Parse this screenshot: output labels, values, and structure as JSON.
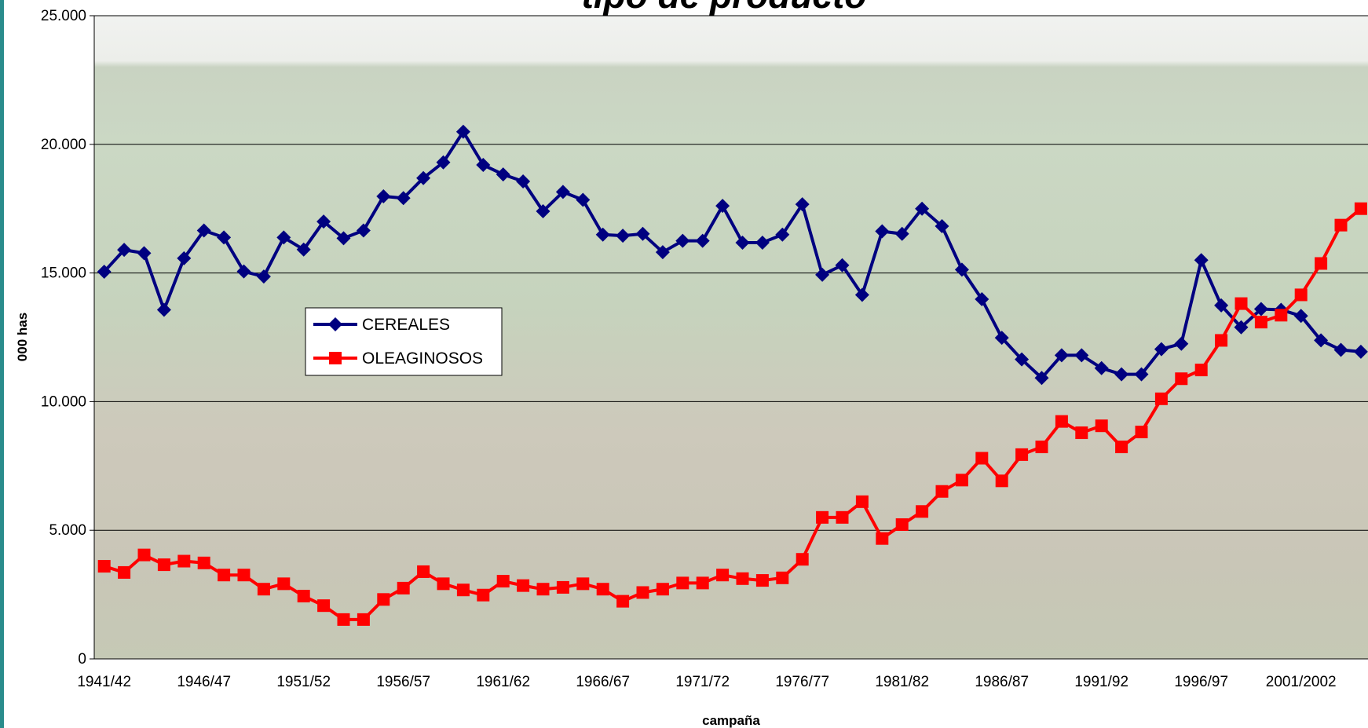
{
  "chart_data": {
    "type": "line",
    "title": "tipo de producto",
    "x_label": "campaña",
    "y_label": "000 has",
    "categories": [
      "1941/42",
      null,
      null,
      null,
      null,
      "1946/47",
      null,
      null,
      null,
      null,
      "1951/52",
      null,
      null,
      null,
      null,
      "1956/57",
      null,
      null,
      null,
      null,
      "1961/62",
      null,
      null,
      null,
      null,
      "1966/67",
      null,
      null,
      null,
      null,
      "1971/72",
      null,
      null,
      null,
      null,
      "1976/77",
      null,
      null,
      null,
      null,
      "1981/82",
      null,
      null,
      null,
      null,
      "1986/87",
      null,
      null,
      null,
      null,
      "1991/92",
      null,
      null,
      null,
      null,
      "1996/97",
      null,
      null,
      null,
      null,
      "2001/2002",
      null,
      null,
      null
    ],
    "series": [
      {
        "name": "CEREALES",
        "color": "#000080",
        "marker": "diamond",
        "values": [
          15050,
          15900,
          15770,
          13570,
          15570,
          16650,
          16380,
          15060,
          14860,
          16380,
          15910,
          17000,
          16350,
          16650,
          17980,
          17910,
          18690,
          19300,
          20490,
          19200,
          18830,
          18560,
          17400,
          18150,
          17840,
          16490,
          16450,
          16520,
          15810,
          16250,
          16250,
          17610,
          16180,
          16180,
          16490,
          17670,
          14930,
          15300,
          14150,
          16620,
          16520,
          17500,
          16820,
          15130,
          13980,
          12480,
          11640,
          10920,
          11800,
          11800,
          11300,
          11060,
          11060,
          12040,
          12250,
          15500,
          13740,
          12890,
          13600,
          13570,
          13330,
          12380,
          12010,
          11940
        ]
      },
      {
        "name": "OLEAGINOSOS",
        "color": "#ff0000",
        "marker": "square",
        "values": [
          3600,
          3360,
          4040,
          3660,
          3800,
          3730,
          3260,
          3260,
          2710,
          2920,
          2440,
          2070,
          1530,
          1530,
          2310,
          2750,
          3390,
          2920,
          2680,
          2480,
          3020,
          2850,
          2710,
          2780,
          2920,
          2710,
          2240,
          2580,
          2710,
          2950,
          2950,
          3260,
          3120,
          3050,
          3150,
          3870,
          5500,
          5500,
          6110,
          4680,
          5220,
          5730,
          6510,
          6950,
          7800,
          6920,
          7940,
          8240,
          9230,
          8790,
          9060,
          8240,
          8820,
          10110,
          10890,
          11230,
          12380,
          13810,
          13090,
          13360,
          14150,
          15370,
          16860,
          17500
        ]
      }
    ],
    "ylim": [
      0,
      25000
    ],
    "yticks": [
      0,
      {
        "value": 5000,
        "label": "5.000"
      },
      {
        "value": 10000,
        "label": "10.000"
      },
      {
        "value": 15000,
        "label": "15.000"
      },
      {
        "value": 20000,
        "label": "20.000"
      },
      {
        "value": 25000,
        "label": "25.000"
      }
    ],
    "grid": true,
    "legend": "left"
  }
}
